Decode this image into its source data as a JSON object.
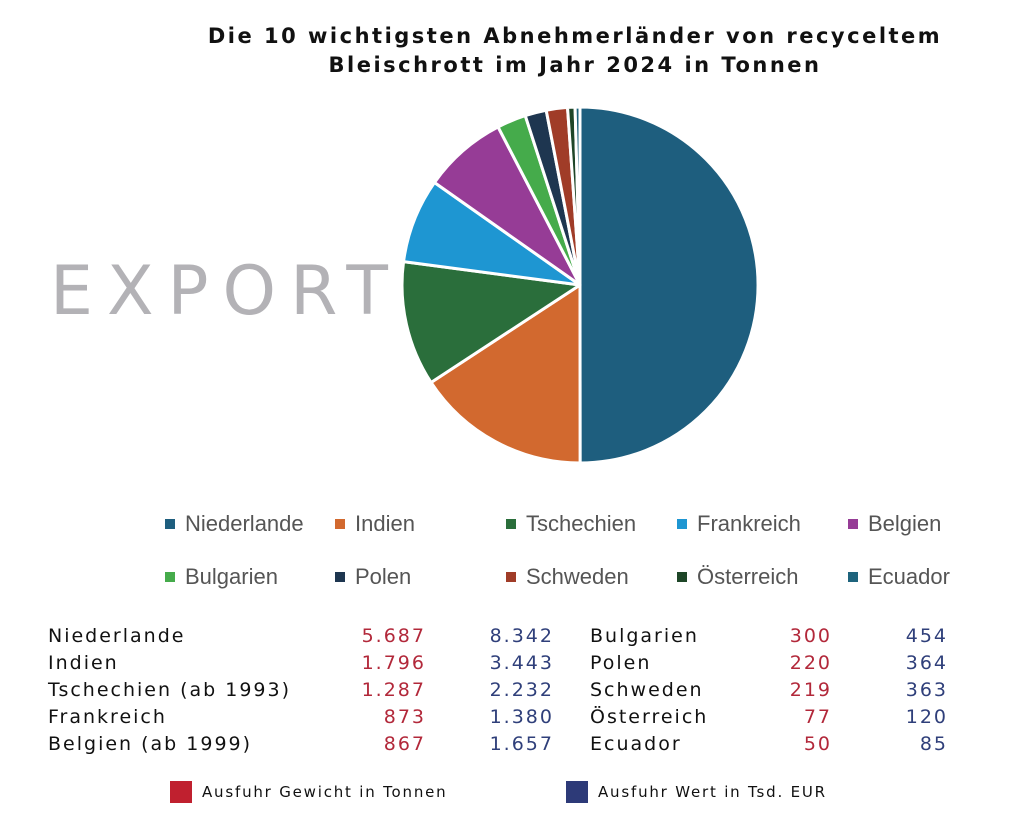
{
  "title_lines": [
    "Die 10 wichtigsten Abnehmerländer von recyceltem",
    "Bleischrott im Jahr 2024 in Tonnen"
  ],
  "watermark": "EXPORT",
  "chart_data": {
    "type": "pie",
    "title": "Die 10 wichtigsten Abnehmerländer von recyceltem Bleischrott im Jahr 2024 in Tonnen",
    "categories": [
      "Niederlande",
      "Indien",
      "Tschechien",
      "Frankreich",
      "Belgien",
      "Bulgarien",
      "Polen",
      "Schweden",
      "Österreich",
      "Ecuador"
    ],
    "values": [
      5687,
      1796,
      1287,
      873,
      867,
      300,
      220,
      219,
      77,
      50
    ],
    "colors": [
      "#1e5e7e",
      "#d2692f",
      "#2a6e3b",
      "#1e96d2",
      "#963c96",
      "#45ab4b",
      "#1e3650",
      "#a03c28",
      "#1e4628",
      "#1e647d"
    ],
    "legend_placement": "bottom"
  },
  "legend": [
    {
      "label": "Niederlande",
      "color": "#1e5e7e"
    },
    {
      "label": "Indien",
      "color": "#d2692f"
    },
    {
      "label": "Tschechien",
      "color": "#2a6e3b"
    },
    {
      "label": "Frankreich",
      "color": "#1e96d2"
    },
    {
      "label": "Belgien",
      "color": "#963c96"
    },
    {
      "label": "Bulgarien",
      "color": "#45ab4b"
    },
    {
      "label": "Polen",
      "color": "#1e3650"
    },
    {
      "label": "Schweden",
      "color": "#a03c28"
    },
    {
      "label": "Österreich",
      "color": "#1e4628"
    },
    {
      "label": "Ecuador",
      "color": "#1e647d"
    }
  ],
  "table": {
    "left": [
      {
        "name": "Niederlande",
        "weight": "5.687",
        "value": "8.342"
      },
      {
        "name": "Indien",
        "weight": "1.796",
        "value": "3.443"
      },
      {
        "name": "Tschechien (ab 1993)",
        "weight": "1.287",
        "value": "2.232"
      },
      {
        "name": "Frankreich",
        "weight": "873",
        "value": "1.380"
      },
      {
        "name": "Belgien (ab 1999)",
        "weight": "867",
        "value": "1.657"
      }
    ],
    "right": [
      {
        "name": "Bulgarien",
        "weight": "300",
        "value": "454"
      },
      {
        "name": "Polen",
        "weight": "220",
        "value": "364"
      },
      {
        "name": "Schweden",
        "weight": "219",
        "value": "363"
      },
      {
        "name": "Österreich",
        "weight": "77",
        "value": "120"
      },
      {
        "name": "Ecuador",
        "weight": "50",
        "value": "85"
      }
    ]
  },
  "key": [
    {
      "label": "Ausfuhr Gewicht in Tonnen",
      "color": "#c0202f"
    },
    {
      "label": "Ausfuhr Wert in Tsd. EUR",
      "color": "#2d3a78"
    }
  ]
}
